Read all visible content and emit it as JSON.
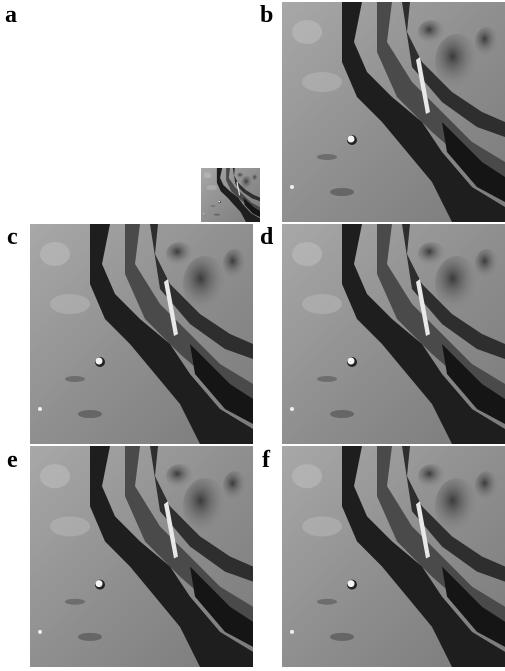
{
  "panels": [
    {
      "label": "a"
    },
    {
      "label": "b"
    },
    {
      "label": "c"
    },
    {
      "label": "d"
    },
    {
      "label": "e"
    },
    {
      "label": "f"
    }
  ]
}
